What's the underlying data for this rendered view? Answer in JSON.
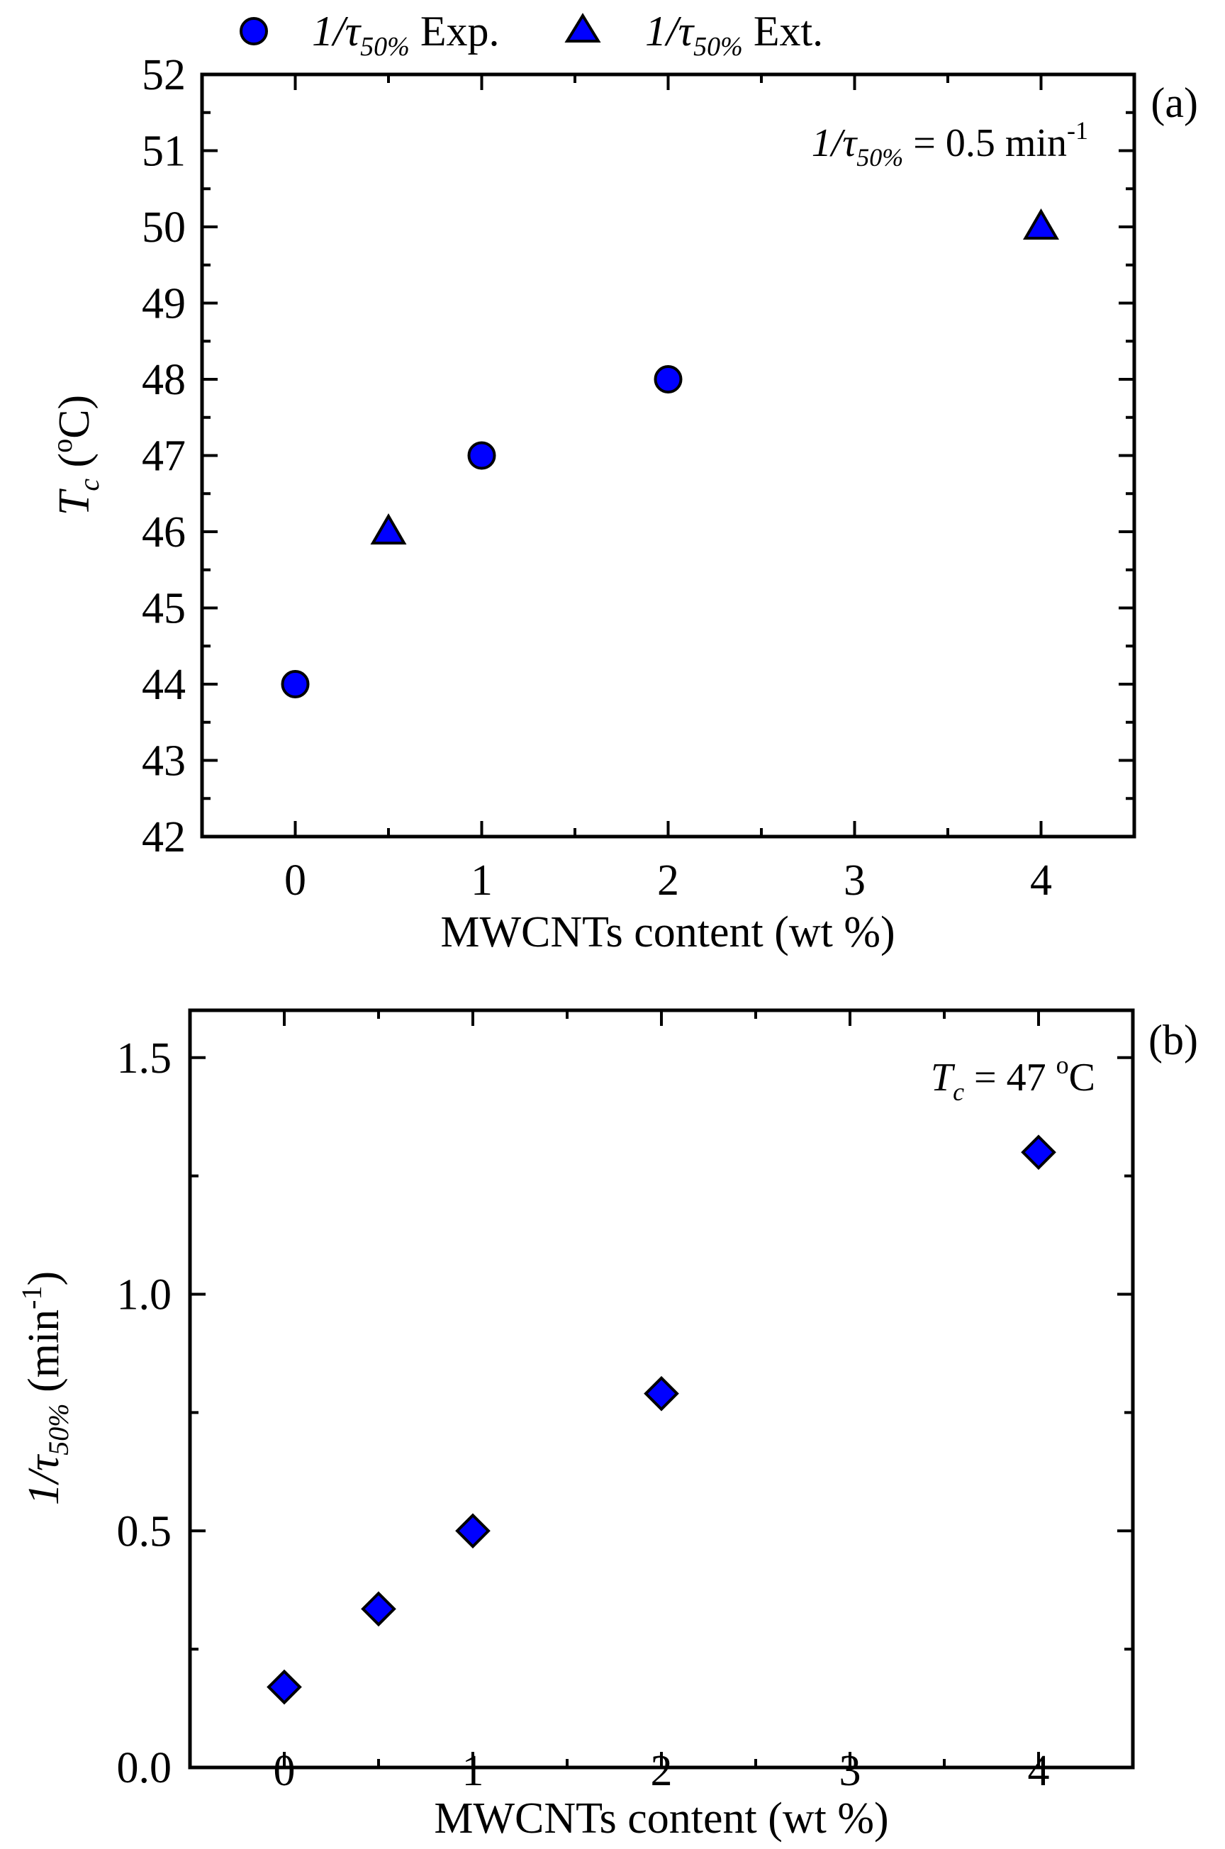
{
  "legend": {
    "exp": {
      "prefix": "1/τ",
      "sub": "50%",
      "suffix": " Exp.",
      "icon": "circle-marker-icon"
    },
    "ext": {
      "prefix": "1/τ",
      "sub": "50%",
      "suffix": " Ext.",
      "icon": "triangle-marker-icon"
    }
  },
  "colors": {
    "marker": "#0000ff",
    "edge": "#000000"
  },
  "chart_data": [
    {
      "type": "scatter",
      "panel": "(a)",
      "annotation": {
        "prefix": "1/τ",
        "sub": "50%",
        "mid": " = 0.5 min",
        "sup": "-1"
      },
      "xlabel": "MWCNTs content (wt %)",
      "ylabel": {
        "main": "T",
        "sub": "c",
        "open": " (",
        "sup": "o",
        "close": "C)"
      },
      "xlim": [
        -0.5,
        4.5
      ],
      "ylim": [
        42,
        52
      ],
      "xticks": [
        "0",
        "1",
        "2",
        "3",
        "4"
      ],
      "yticks": [
        "42",
        "43",
        "44",
        "45",
        "46",
        "47",
        "48",
        "49",
        "50",
        "51",
        "52"
      ],
      "series": [
        {
          "name": "1/τ50% Exp.",
          "marker": "circle",
          "x": [
            0,
            1,
            2
          ],
          "y": [
            44,
            47,
            48
          ]
        },
        {
          "name": "1/τ50% Ext.",
          "marker": "triangle",
          "x": [
            0.5,
            4
          ],
          "y": [
            46,
            50
          ]
        }
      ]
    },
    {
      "type": "scatter",
      "panel": "(b)",
      "annotation": {
        "main": "T",
        "sub": "c",
        "mid": " = 47 ",
        "sup": "o",
        "end": "C"
      },
      "xlabel": "MWCNTs content (wt %)",
      "ylabel": {
        "prefix": "1/τ",
        "sub": "50%",
        "open": " (min",
        "sup": "-1",
        "close": ")"
      },
      "xlim": [
        -0.5,
        4.5
      ],
      "ylim": [
        0,
        1.6
      ],
      "xticks": [
        "0",
        "1",
        "2",
        "3",
        "4"
      ],
      "yticks": [
        "0.0",
        "0.5",
        "1.0",
        "1.5"
      ],
      "series": [
        {
          "name": "1/τ50%",
          "marker": "diamond",
          "x": [
            0,
            0.5,
            1,
            2,
            4
          ],
          "y": [
            0.17,
            0.335,
            0.5,
            0.79,
            1.3
          ]
        }
      ]
    }
  ]
}
